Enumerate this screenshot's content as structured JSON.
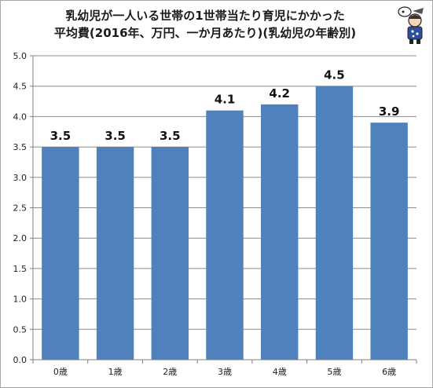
{
  "chart_data": {
    "type": "bar",
    "title_lines": [
      "乳幼児が一人いる世帯の1世帯当たり育児にかかった",
      "平均費(2016年、万円、一か月あたり)(乳幼児の年齢別)"
    ],
    "categories": [
      "0歳",
      "1歳",
      "2歳",
      "3歳",
      "4歳",
      "5歳",
      "6歳"
    ],
    "values": [
      3.5,
      3.5,
      3.5,
      4.1,
      4.2,
      4.5,
      3.9
    ],
    "data_labels": [
      "3.5",
      "3.5",
      "3.5",
      "4.1",
      "4.2",
      "4.5",
      "3.9"
    ],
    "yticks": [
      "0.0",
      "0.5",
      "1.0",
      "1.5",
      "2.0",
      "2.5",
      "3.0",
      "3.5",
      "4.0",
      "4.5",
      "5.0"
    ],
    "ylim": [
      0,
      5
    ],
    "grid": true,
    "bar_color": "#4f81bd",
    "legend": "none"
  }
}
